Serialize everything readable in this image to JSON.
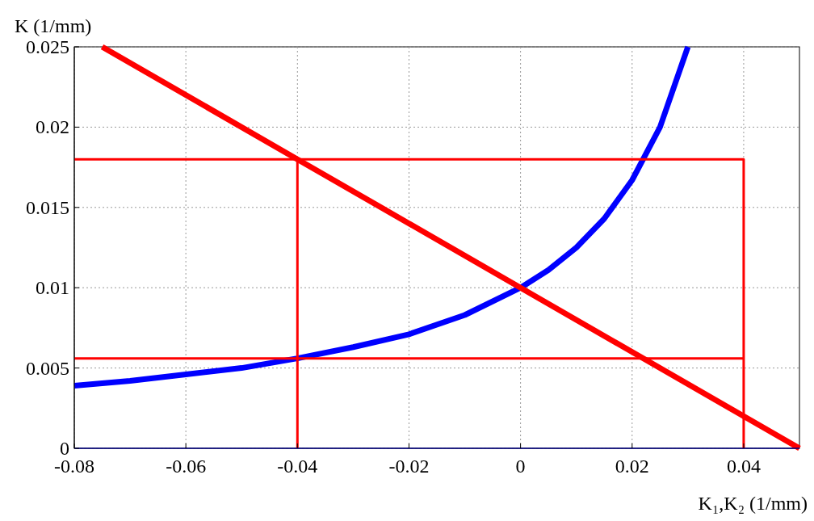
{
  "chart_data": {
    "type": "line",
    "xlabel": "K₁,K₂ (1/mm)",
    "ylabel": "K (1/mm)",
    "xlim": [
      -0.08,
      0.05
    ],
    "xticks": [
      -0.08,
      -0.06,
      -0.04,
      -0.02,
      0,
      0.02,
      0.04
    ],
    "ylim": [
      0,
      0.025
    ],
    "yticks": [
      0,
      0.005,
      0.01,
      0.015,
      0.02,
      0.025
    ],
    "grid": true,
    "line_style": "solid",
    "marker": "none",
    "series": [
      {
        "color": "#0000ff",
        "x": [
          -0.08,
          -0.07,
          -0.06,
          -0.05,
          -0.04,
          -0.03,
          -0.02,
          -0.01,
          0,
          0.005,
          0.01,
          0.015,
          0.02,
          0.025,
          0.03
        ],
        "values": [
          0.0039,
          0.0042,
          0.0046,
          0.005,
          0.0056,
          0.0063,
          0.0071,
          0.0083,
          0.01,
          0.0111,
          0.0125,
          0.0143,
          0.0167,
          0.02,
          0.025
        ]
      },
      {
        "color": "#ff0000",
        "x": [
          -0.075,
          -0.04,
          0,
          0.04,
          0.05
        ],
        "values": [
          0.025,
          0.018,
          0.01,
          0.002,
          0
        ]
      },
      {
        "color": "#ff0000",
        "x": [
          -0.08,
          0.04,
          0.04
        ],
        "values": [
          0.018,
          0.018,
          0
        ]
      },
      {
        "color": "#ff0000",
        "x": [
          -0.08,
          0.04
        ],
        "values": [
          0.0056,
          0.0056
        ]
      },
      {
        "color": "#ff0000",
        "x": [
          -0.04,
          -0.04
        ],
        "values": [
          0,
          0.018
        ]
      }
    ]
  }
}
